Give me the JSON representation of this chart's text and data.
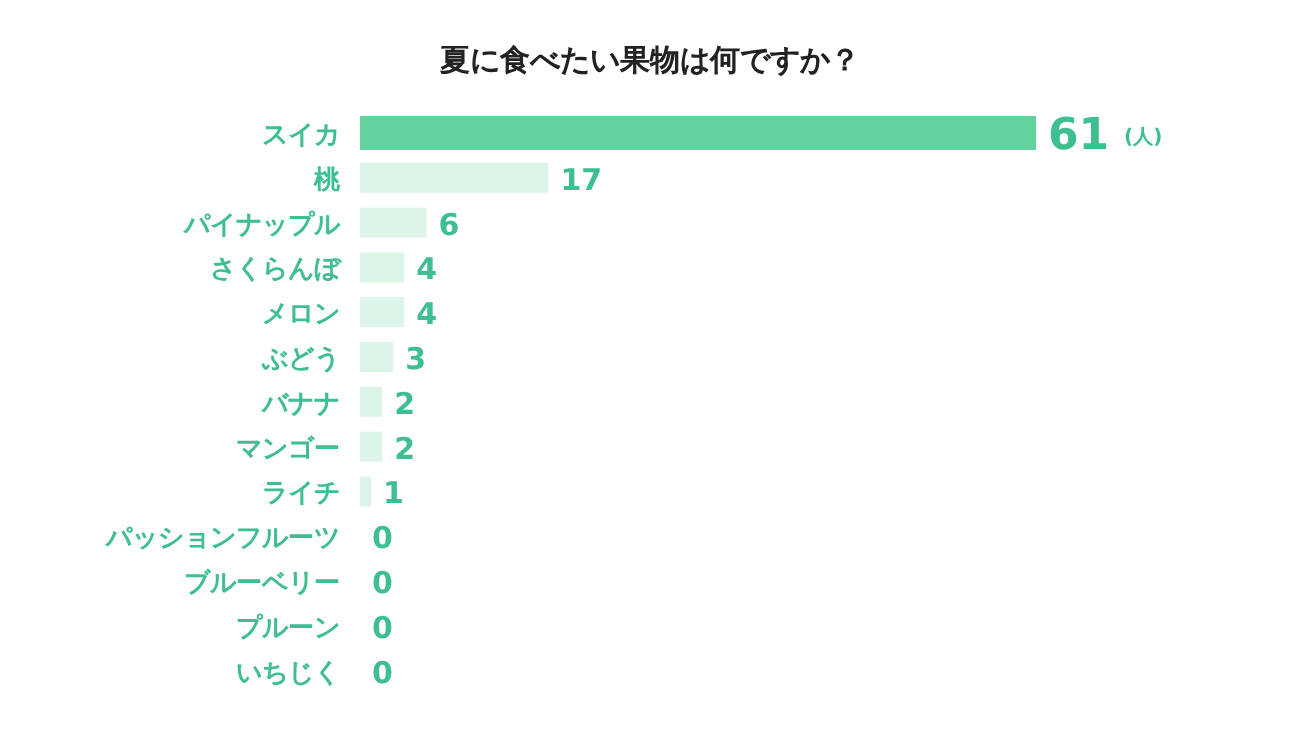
{
  "chart_data": {
    "type": "bar",
    "orientation": "horizontal",
    "title": "夏に食べたい果物は何ですか？",
    "categories": [
      "スイカ",
      "桃",
      "パイナップル",
      "さくらんぼ",
      "メロン",
      "ぶどう",
      "バナナ",
      "マンゴー",
      "ライチ",
      "パッションフルーツ",
      "ブルーベリー",
      "プルーン",
      "いちじく"
    ],
    "values": [
      61,
      17,
      6,
      4,
      4,
      3,
      2,
      2,
      1,
      0,
      0,
      0,
      0
    ],
    "colors": [
      "#62d39f",
      "#ddf5e9",
      "#ddf5e9",
      "#ddf5e9",
      "#ddf5e9",
      "#ddf5e9",
      "#ddf5e9",
      "#ddf5e9",
      "#ddf5e9",
      "#ddf5e9",
      "#ddf5e9",
      "#ddf5e9",
      "#ddf5e9"
    ],
    "data_labels": true,
    "annotations": [
      "(人)"
    ]
  }
}
